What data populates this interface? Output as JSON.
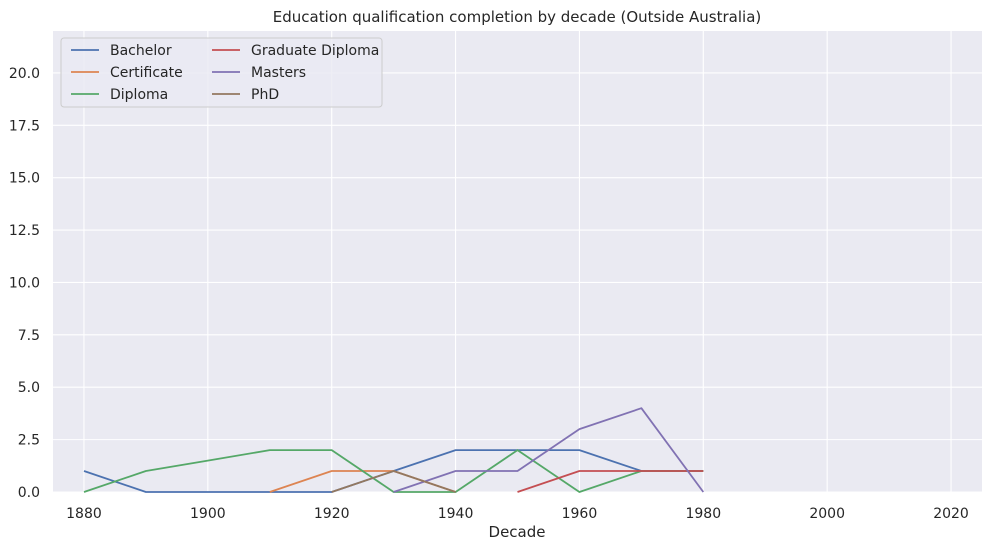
{
  "chart_data": {
    "type": "line",
    "title": "Education qualification completion by decade (Outside Australia)",
    "xlabel": "Decade",
    "ylabel": "",
    "xlim": [
      1875,
      2025
    ],
    "ylim": [
      0,
      22
    ],
    "x_ticks": [
      "1880",
      "1900",
      "1920",
      "1940",
      "1960",
      "1980",
      "2000",
      "2020"
    ],
    "y_ticks": [
      "0.0",
      "2.5",
      "5.0",
      "7.5",
      "10.0",
      "12.5",
      "15.0",
      "17.5",
      "20.0"
    ],
    "grid": true,
    "legend_position": "top-left",
    "legend_columns": 2,
    "background_color": "#eaeaf2",
    "series": [
      {
        "name": "Bachelor",
        "color": "#4c72b0",
        "x": [
          1880,
          1890,
          1900,
          1910,
          1920,
          1930,
          1940,
          1950,
          1960,
          1970,
          1980
        ],
        "y": [
          1,
          0,
          0,
          0,
          0,
          1,
          2,
          2,
          2,
          1,
          1
        ]
      },
      {
        "name": "Certificate",
        "color": "#dd8452",
        "x": [
          1910,
          1920,
          1930,
          1940
        ],
        "y": [
          0,
          1,
          1,
          0
        ]
      },
      {
        "name": "Diploma",
        "color": "#55a868",
        "x": [
          1880,
          1890,
          1900,
          1910,
          1920,
          1930,
          1940,
          1950,
          1960,
          1970,
          1980
        ],
        "y": [
          0,
          1,
          1.5,
          2,
          2,
          0,
          0,
          2,
          0,
          1,
          1
        ]
      },
      {
        "name": "Graduate Diploma",
        "color": "#c44e52",
        "x": [
          1950,
          1960,
          1970,
          1980
        ],
        "y": [
          0,
          1,
          1,
          1
        ]
      },
      {
        "name": "Masters",
        "color": "#8172b3",
        "x": [
          1930,
          1940,
          1950,
          1960,
          1970,
          1980
        ],
        "y": [
          0,
          1,
          1,
          3,
          4,
          0
        ]
      },
      {
        "name": "PhD",
        "color": "#937860",
        "x": [
          1920,
          1930,
          1940
        ],
        "y": [
          0,
          1,
          0
        ]
      }
    ]
  }
}
